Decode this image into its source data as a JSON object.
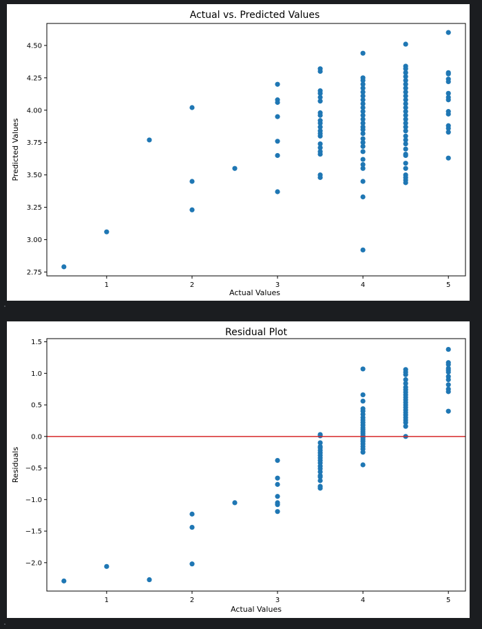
{
  "colors": {
    "marker": "#1f77b4",
    "zero_line": "#d62728",
    "background": "#ffffff",
    "page": "#1b1d20"
  },
  "chart_data": [
    {
      "type": "scatter",
      "title": "Actual vs. Predicted Values",
      "xlabel": "Actual Values",
      "ylabel": "Predicted Values",
      "xlim": [
        0.3,
        5.2
      ],
      "ylim": [
        2.72,
        4.67
      ],
      "xticks": [
        1,
        2,
        3,
        4,
        5
      ],
      "xtick_labels": [
        "1",
        "2",
        "3",
        "4",
        "5"
      ],
      "yticks": [
        2.75,
        3.0,
        3.25,
        3.5,
        3.75,
        4.0,
        4.25,
        4.5
      ],
      "ytick_labels": [
        "2.75",
        "3.00",
        "3.25",
        "3.50",
        "3.75",
        "4.00",
        "4.25",
        "4.50"
      ],
      "points": [
        [
          0.5,
          2.79
        ],
        [
          1,
          3.06
        ],
        [
          1.5,
          3.77
        ],
        [
          2,
          4.02
        ],
        [
          2,
          3.45
        ],
        [
          2,
          3.23
        ],
        [
          2.5,
          3.55
        ],
        [
          3,
          4.2
        ],
        [
          3,
          4.08
        ],
        [
          3,
          4.06
        ],
        [
          3,
          3.95
        ],
        [
          3,
          3.76
        ],
        [
          3,
          3.65
        ],
        [
          3,
          3.37
        ],
        [
          3.5,
          4.32
        ],
        [
          3.5,
          4.3
        ],
        [
          3.5,
          4.15
        ],
        [
          3.5,
          4.13
        ],
        [
          3.5,
          4.1
        ],
        [
          3.5,
          4.07
        ],
        [
          3.5,
          3.98
        ],
        [
          3.5,
          3.96
        ],
        [
          3.5,
          3.92
        ],
        [
          3.5,
          3.9
        ],
        [
          3.5,
          3.87
        ],
        [
          3.5,
          3.84
        ],
        [
          3.5,
          3.82
        ],
        [
          3.5,
          3.8
        ],
        [
          3.5,
          3.74
        ],
        [
          3.5,
          3.71
        ],
        [
          3.5,
          3.68
        ],
        [
          3.5,
          3.66
        ],
        [
          3.5,
          3.5
        ],
        [
          3.5,
          3.48
        ],
        [
          4,
          4.44
        ],
        [
          4,
          4.25
        ],
        [
          4,
          4.23
        ],
        [
          4,
          4.2
        ],
        [
          4,
          4.17
        ],
        [
          4,
          4.14
        ],
        [
          4,
          4.11
        ],
        [
          4,
          4.08
        ],
        [
          4,
          4.05
        ],
        [
          4,
          4.02
        ],
        [
          4,
          3.99
        ],
        [
          4,
          3.96
        ],
        [
          4,
          3.93
        ],
        [
          4,
          3.9
        ],
        [
          4,
          3.87
        ],
        [
          4,
          3.85
        ],
        [
          4,
          3.82
        ],
        [
          4,
          3.78
        ],
        [
          4,
          3.75
        ],
        [
          4,
          3.72
        ],
        [
          4,
          3.68
        ],
        [
          4,
          3.62
        ],
        [
          4,
          3.58
        ],
        [
          4,
          3.55
        ],
        [
          4,
          3.45
        ],
        [
          4,
          3.33
        ],
        [
          4,
          2.92
        ],
        [
          4.5,
          4.51
        ],
        [
          4.5,
          4.34
        ],
        [
          4.5,
          4.32
        ],
        [
          4.5,
          4.29
        ],
        [
          4.5,
          4.26
        ],
        [
          4.5,
          4.23
        ],
        [
          4.5,
          4.2
        ],
        [
          4.5,
          4.17
        ],
        [
          4.5,
          4.14
        ],
        [
          4.5,
          4.11
        ],
        [
          4.5,
          4.08
        ],
        [
          4.5,
          4.05
        ],
        [
          4.5,
          4.02
        ],
        [
          4.5,
          3.99
        ],
        [
          4.5,
          3.96
        ],
        [
          4.5,
          3.93
        ],
        [
          4.5,
          3.9
        ],
        [
          4.5,
          3.87
        ],
        [
          4.5,
          3.84
        ],
        [
          4.5,
          3.8
        ],
        [
          4.5,
          3.77
        ],
        [
          4.5,
          3.74
        ],
        [
          4.5,
          3.7
        ],
        [
          4.5,
          3.66
        ],
        [
          4.5,
          3.65
        ],
        [
          4.5,
          3.59
        ],
        [
          4.5,
          3.55
        ],
        [
          4.5,
          3.5
        ],
        [
          4.5,
          3.48
        ],
        [
          4.5,
          3.46
        ],
        [
          4.5,
          3.44
        ],
        [
          5,
          4.6
        ],
        [
          5,
          4.29
        ],
        [
          5,
          4.28
        ],
        [
          5,
          4.24
        ],
        [
          5,
          4.22
        ],
        [
          5,
          4.13
        ],
        [
          5,
          4.1
        ],
        [
          5,
          4.08
        ],
        [
          5,
          3.99
        ],
        [
          5,
          3.97
        ],
        [
          5,
          3.88
        ],
        [
          5,
          3.86
        ],
        [
          5,
          3.83
        ],
        [
          5,
          3.63
        ]
      ]
    },
    {
      "type": "scatter",
      "title": "Residual Plot",
      "xlabel": "Actual Values",
      "ylabel": "Residuals",
      "xlim": [
        0.3,
        5.2
      ],
      "ylim": [
        -2.45,
        1.55
      ],
      "xticks": [
        1,
        2,
        3,
        4,
        5
      ],
      "xtick_labels": [
        "1",
        "2",
        "3",
        "4",
        "5"
      ],
      "yticks": [
        -2.0,
        -1.5,
        -1.0,
        -0.5,
        0.0,
        0.5,
        1.0,
        1.5
      ],
      "ytick_labels": [
        "−2.0",
        "−1.5",
        "−1.0",
        "−0.5",
        "0.0",
        "0.5",
        "1.0",
        "1.5"
      ],
      "hline": 0.0,
      "points": [
        [
          0.5,
          -2.29
        ],
        [
          1,
          -2.06
        ],
        [
          1.5,
          -2.27
        ],
        [
          2,
          -1.23
        ],
        [
          2,
          -1.44
        ],
        [
          2,
          -2.02
        ],
        [
          2.5,
          -1.05
        ],
        [
          3,
          -0.38
        ],
        [
          3,
          -0.66
        ],
        [
          3,
          -0.76
        ],
        [
          3,
          -0.95
        ],
        [
          3,
          -1.05
        ],
        [
          3,
          -1.08
        ],
        [
          3,
          -1.19
        ],
        [
          3.5,
          0.03
        ],
        [
          3.5,
          0.01
        ],
        [
          3.5,
          -0.1
        ],
        [
          3.5,
          -0.16
        ],
        [
          3.5,
          -0.18
        ],
        [
          3.5,
          -0.22
        ],
        [
          3.5,
          -0.26
        ],
        [
          3.5,
          -0.3
        ],
        [
          3.5,
          -0.34
        ],
        [
          3.5,
          -0.38
        ],
        [
          3.5,
          -0.42
        ],
        [
          3.5,
          -0.47
        ],
        [
          3.5,
          -0.51
        ],
        [
          3.5,
          -0.56
        ],
        [
          3.5,
          -0.62
        ],
        [
          3.5,
          -0.64
        ],
        [
          3.5,
          -0.7
        ],
        [
          3.5,
          -0.79
        ],
        [
          3.5,
          -0.82
        ],
        [
          4,
          1.07
        ],
        [
          4,
          0.66
        ],
        [
          4,
          0.56
        ],
        [
          4,
          0.44
        ],
        [
          4,
          0.4
        ],
        [
          4,
          0.35
        ],
        [
          4,
          0.3
        ],
        [
          4,
          0.26
        ],
        [
          4,
          0.22
        ],
        [
          4,
          0.18
        ],
        [
          4,
          0.14
        ],
        [
          4,
          0.11
        ],
        [
          4,
          0.08
        ],
        [
          4,
          0.05
        ],
        [
          4,
          0.02
        ],
        [
          4,
          -0.02
        ],
        [
          4,
          -0.05
        ],
        [
          4,
          -0.08
        ],
        [
          4,
          -0.12
        ],
        [
          4,
          -0.16
        ],
        [
          4,
          -0.2
        ],
        [
          4,
          -0.25
        ],
        [
          4,
          -0.45
        ],
        [
          4.5,
          1.06
        ],
        [
          4.5,
          1.02
        ],
        [
          4.5,
          0.98
        ],
        [
          4.5,
          0.9
        ],
        [
          4.5,
          0.84
        ],
        [
          4.5,
          0.78
        ],
        [
          4.5,
          0.74
        ],
        [
          4.5,
          0.7
        ],
        [
          4.5,
          0.66
        ],
        [
          4.5,
          0.62
        ],
        [
          4.5,
          0.58
        ],
        [
          4.5,
          0.54
        ],
        [
          4.5,
          0.5
        ],
        [
          4.5,
          0.46
        ],
        [
          4.5,
          0.42
        ],
        [
          4.5,
          0.38
        ],
        [
          4.5,
          0.34
        ],
        [
          4.5,
          0.3
        ],
        [
          4.5,
          0.26
        ],
        [
          4.5,
          0.22
        ],
        [
          4.5,
          0.16
        ],
        [
          4.5,
          0.0
        ],
        [
          5,
          1.38
        ],
        [
          5,
          1.17
        ],
        [
          5,
          1.14
        ],
        [
          5,
          1.08
        ],
        [
          5,
          1.05
        ],
        [
          5,
          1.02
        ],
        [
          5,
          0.95
        ],
        [
          5,
          0.9
        ],
        [
          5,
          0.82
        ],
        [
          5,
          0.75
        ],
        [
          5,
          0.71
        ],
        [
          5,
          0.4
        ]
      ]
    }
  ]
}
